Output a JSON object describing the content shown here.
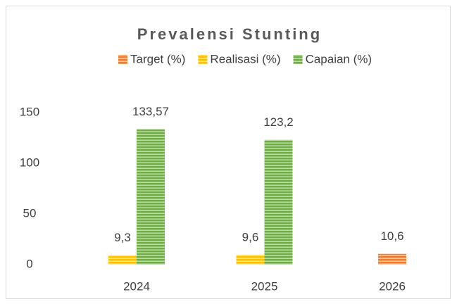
{
  "chart_data": {
    "type": "bar",
    "title": "Prevalensi Stunting",
    "categories": [
      "2024",
      "2025",
      "2026"
    ],
    "series": [
      {
        "name": "Target (%)",
        "color": "#ed7d31",
        "values": [
          null,
          null,
          10.6
        ],
        "value_labels": [
          null,
          null,
          "10,6"
        ]
      },
      {
        "name": "Realisasi (%)",
        "color": "#ffc000",
        "values": [
          9.3,
          9.6,
          null
        ],
        "value_labels": [
          "9,3",
          "9,6",
          null
        ]
      },
      {
        "name": "Capaian (%)",
        "color": "#70ad47",
        "values": [
          133.57,
          123.2,
          null
        ],
        "value_labels": [
          "133,57",
          "123,2",
          null
        ]
      }
    ],
    "ylim": [
      0,
      150
    ],
    "yticks": [
      0,
      50,
      100,
      150
    ],
    "grid": false,
    "legend": "top"
  }
}
